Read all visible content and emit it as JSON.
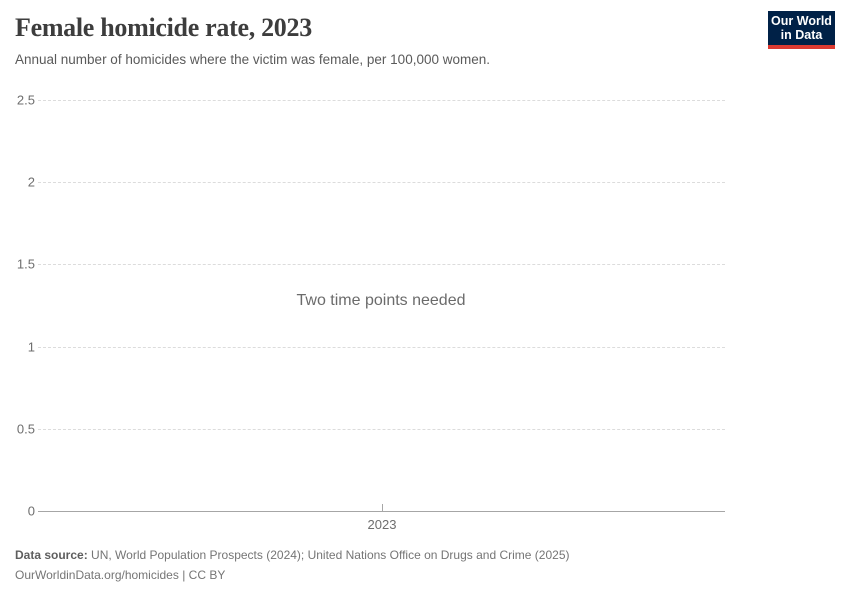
{
  "header": {
    "title": "Female homicide rate, 2023",
    "subtitle": "Annual number of homicides where the victim was female, per 100,000 women.",
    "logo": {
      "line1": "Our World",
      "line2": "in Data",
      "bg_color": "#002147",
      "accent_color": "#dc3a31"
    }
  },
  "chart_data": {
    "type": "line",
    "title": "Female homicide rate, 2023",
    "xlabel": "",
    "ylabel": "",
    "ylim": [
      0,
      2.5
    ],
    "grid": true,
    "series": [],
    "empty_state_message": "Two time points needed",
    "y_ticks": [
      {
        "value": 0,
        "label": "0"
      },
      {
        "value": 0.5,
        "label": "0.5"
      },
      {
        "value": 1,
        "label": "1"
      },
      {
        "value": 1.5,
        "label": "1.5"
      },
      {
        "value": 2,
        "label": "2"
      },
      {
        "value": 2.5,
        "label": "2.5"
      }
    ],
    "x_ticks": [
      {
        "label": "2023",
        "position": "center"
      }
    ]
  },
  "footer": {
    "datasource_label": "Data source:",
    "datasource_text": " UN, World Population Prospects (2024); United Nations Office on Drugs and Crime (2025)",
    "link_text": "OurWorldinData.org/homicides",
    "separator": " | ",
    "license_text": "CC BY"
  },
  "colors": {
    "gridline": "#dcdcdc",
    "axis": "#a6a6a6",
    "tick_label": "#6e6e6e",
    "title": "#3d3d3d",
    "subtitle": "#5a5a5a",
    "footer": "#757575",
    "logo_bg": "#002147",
    "logo_accent": "#dc3a31"
  }
}
